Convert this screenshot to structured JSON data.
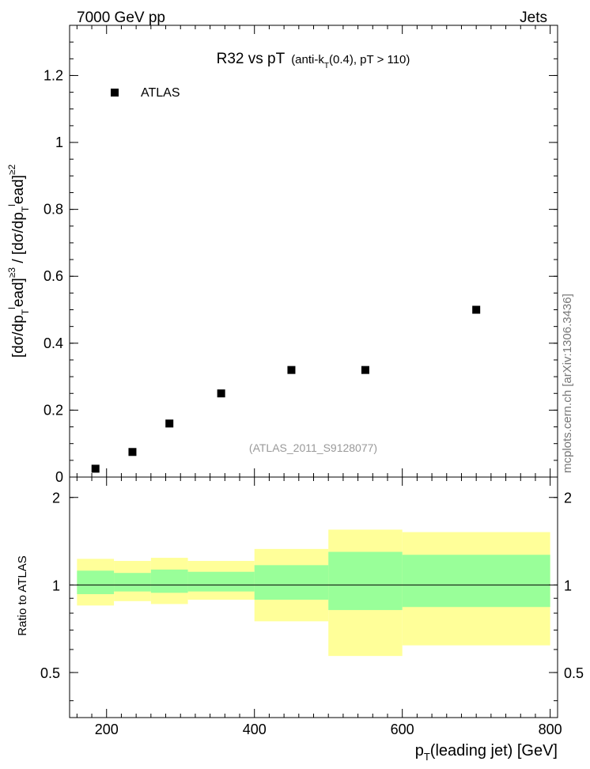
{
  "header": {
    "left": "7000 GeV pp",
    "right": "Jets",
    "side": "mcplots.cern.ch [arXiv:1306.3436]"
  },
  "chart_data": [
    {
      "type": "scatter",
      "title": "R32 vs pT",
      "title_parts": {
        "main": "R32 vs pT",
        "qualifier_a": "(anti-k",
        "qualifier_sub": "T",
        "qualifier_b": "(0.4), pT > 110)"
      },
      "ylabel": "[dσ/dp_T^lead]^≥3 / [dσ/dp_T^lead]^≥2",
      "ylabel_parts": {
        "a": "[dσ/dp",
        "sub1": "T",
        "sup1": "l",
        "b": "ead]",
        "sup2": "≥3",
        "c": " / [dσ/dp",
        "sub2": "T",
        "sup3": "l",
        "d": "ead]",
        "sup4": "≥2"
      },
      "xlim": [
        150,
        810
      ],
      "ylim": [
        0,
        1.35
      ],
      "yticks": [
        0,
        0.2,
        0.4,
        0.6,
        0.8,
        1,
        1.2
      ],
      "ytick_labels": [
        "0",
        "0.2",
        "0.4",
        "0.6",
        "0.8",
        "1",
        "1.2"
      ],
      "legend": {
        "placement": "top-left",
        "label": "ATLAS"
      },
      "watermark": "(ATLAS_2011_S9128077)",
      "series": [
        {
          "name": "ATLAS",
          "marker": "square",
          "color": "#000000",
          "x": [
            185,
            235,
            285,
            355,
            450,
            550,
            700
          ],
          "y": [
            0.025,
            0.075,
            0.16,
            0.25,
            0.32,
            0.32,
            0.5
          ]
        }
      ]
    },
    {
      "type": "area",
      "ylabel": "Ratio to ATLAS",
      "xlabel": "p_T(leading jet) [GeV]",
      "xlabel_parts": {
        "a": "p",
        "sub": "T",
        "b": "(leading jet) [GeV]"
      },
      "xlim": [
        150,
        810
      ],
      "ylim": [
        0.35,
        2.35
      ],
      "xticks": [
        200,
        400,
        600,
        800
      ],
      "xtick_labels": [
        "200",
        "400",
        "600",
        "800"
      ],
      "yticks": [
        0.5,
        1,
        2
      ],
      "ytick_labels": [
        "0.5",
        "1",
        "2"
      ],
      "reference_line": 1,
      "colors": {
        "outer_band": "#ffff99",
        "inner_band": "#99ff99",
        "line": "#000000"
      },
      "bins": [
        {
          "lo": 160,
          "hi": 210,
          "inner": [
            0.93,
            1.12
          ],
          "outer": [
            0.85,
            1.23
          ]
        },
        {
          "lo": 210,
          "hi": 260,
          "inner": [
            0.95,
            1.1
          ],
          "outer": [
            0.88,
            1.21
          ]
        },
        {
          "lo": 260,
          "hi": 310,
          "inner": [
            0.94,
            1.13
          ],
          "outer": [
            0.86,
            1.24
          ]
        },
        {
          "lo": 310,
          "hi": 400,
          "inner": [
            0.95,
            1.11
          ],
          "outer": [
            0.89,
            1.21
          ]
        },
        {
          "lo": 400,
          "hi": 500,
          "inner": [
            0.89,
            1.17
          ],
          "outer": [
            0.75,
            1.33
          ]
        },
        {
          "lo": 500,
          "hi": 600,
          "inner": [
            0.82,
            1.3
          ],
          "outer": [
            0.57,
            1.55
          ]
        },
        {
          "lo": 600,
          "hi": 800,
          "inner": [
            0.84,
            1.27
          ],
          "outer": [
            0.62,
            1.52
          ]
        }
      ]
    }
  ]
}
